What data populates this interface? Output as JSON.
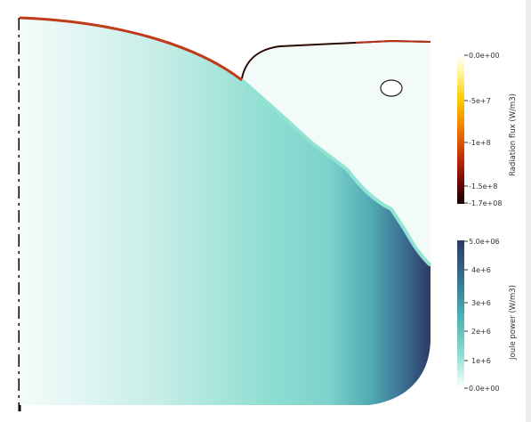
{
  "colors": {
    "background": "#ffffff",
    "axis_dash": "#000000",
    "melt_light": "#f2fbf8",
    "melt_mid": "#86dccf",
    "melt_dark": "#2d3a63",
    "gas_region": "#f3fbf8",
    "interface_edge": "#8fe0d0",
    "radiation_edge": "#c0391b",
    "ring_edge": "#111111"
  },
  "legend_radiation": {
    "title": "Radiation flux (W/m3)",
    "ticks": [
      "0.0e+00",
      "-5e+7",
      "-1e+8",
      "-1.5e+8",
      "-1.7e+08"
    ],
    "range": [
      -170000000,
      0
    ],
    "colormap": [
      "#ffffff",
      "#fff7a0",
      "#ffd400",
      "#f28a00",
      "#d23a06",
      "#8a0808",
      "#150000"
    ]
  },
  "legend_joule": {
    "title": "Joule power (W/m3)",
    "ticks": [
      "5.0e+06",
      "4e+6",
      "3e+6",
      "2e+6",
      "1e+6",
      "0.0e+00"
    ],
    "range": [
      0,
      5000000
    ],
    "colormap": [
      "#ffffff",
      "#88dccf",
      "#3fa7a9",
      "#2d6f91",
      "#2d3a63"
    ]
  }
}
